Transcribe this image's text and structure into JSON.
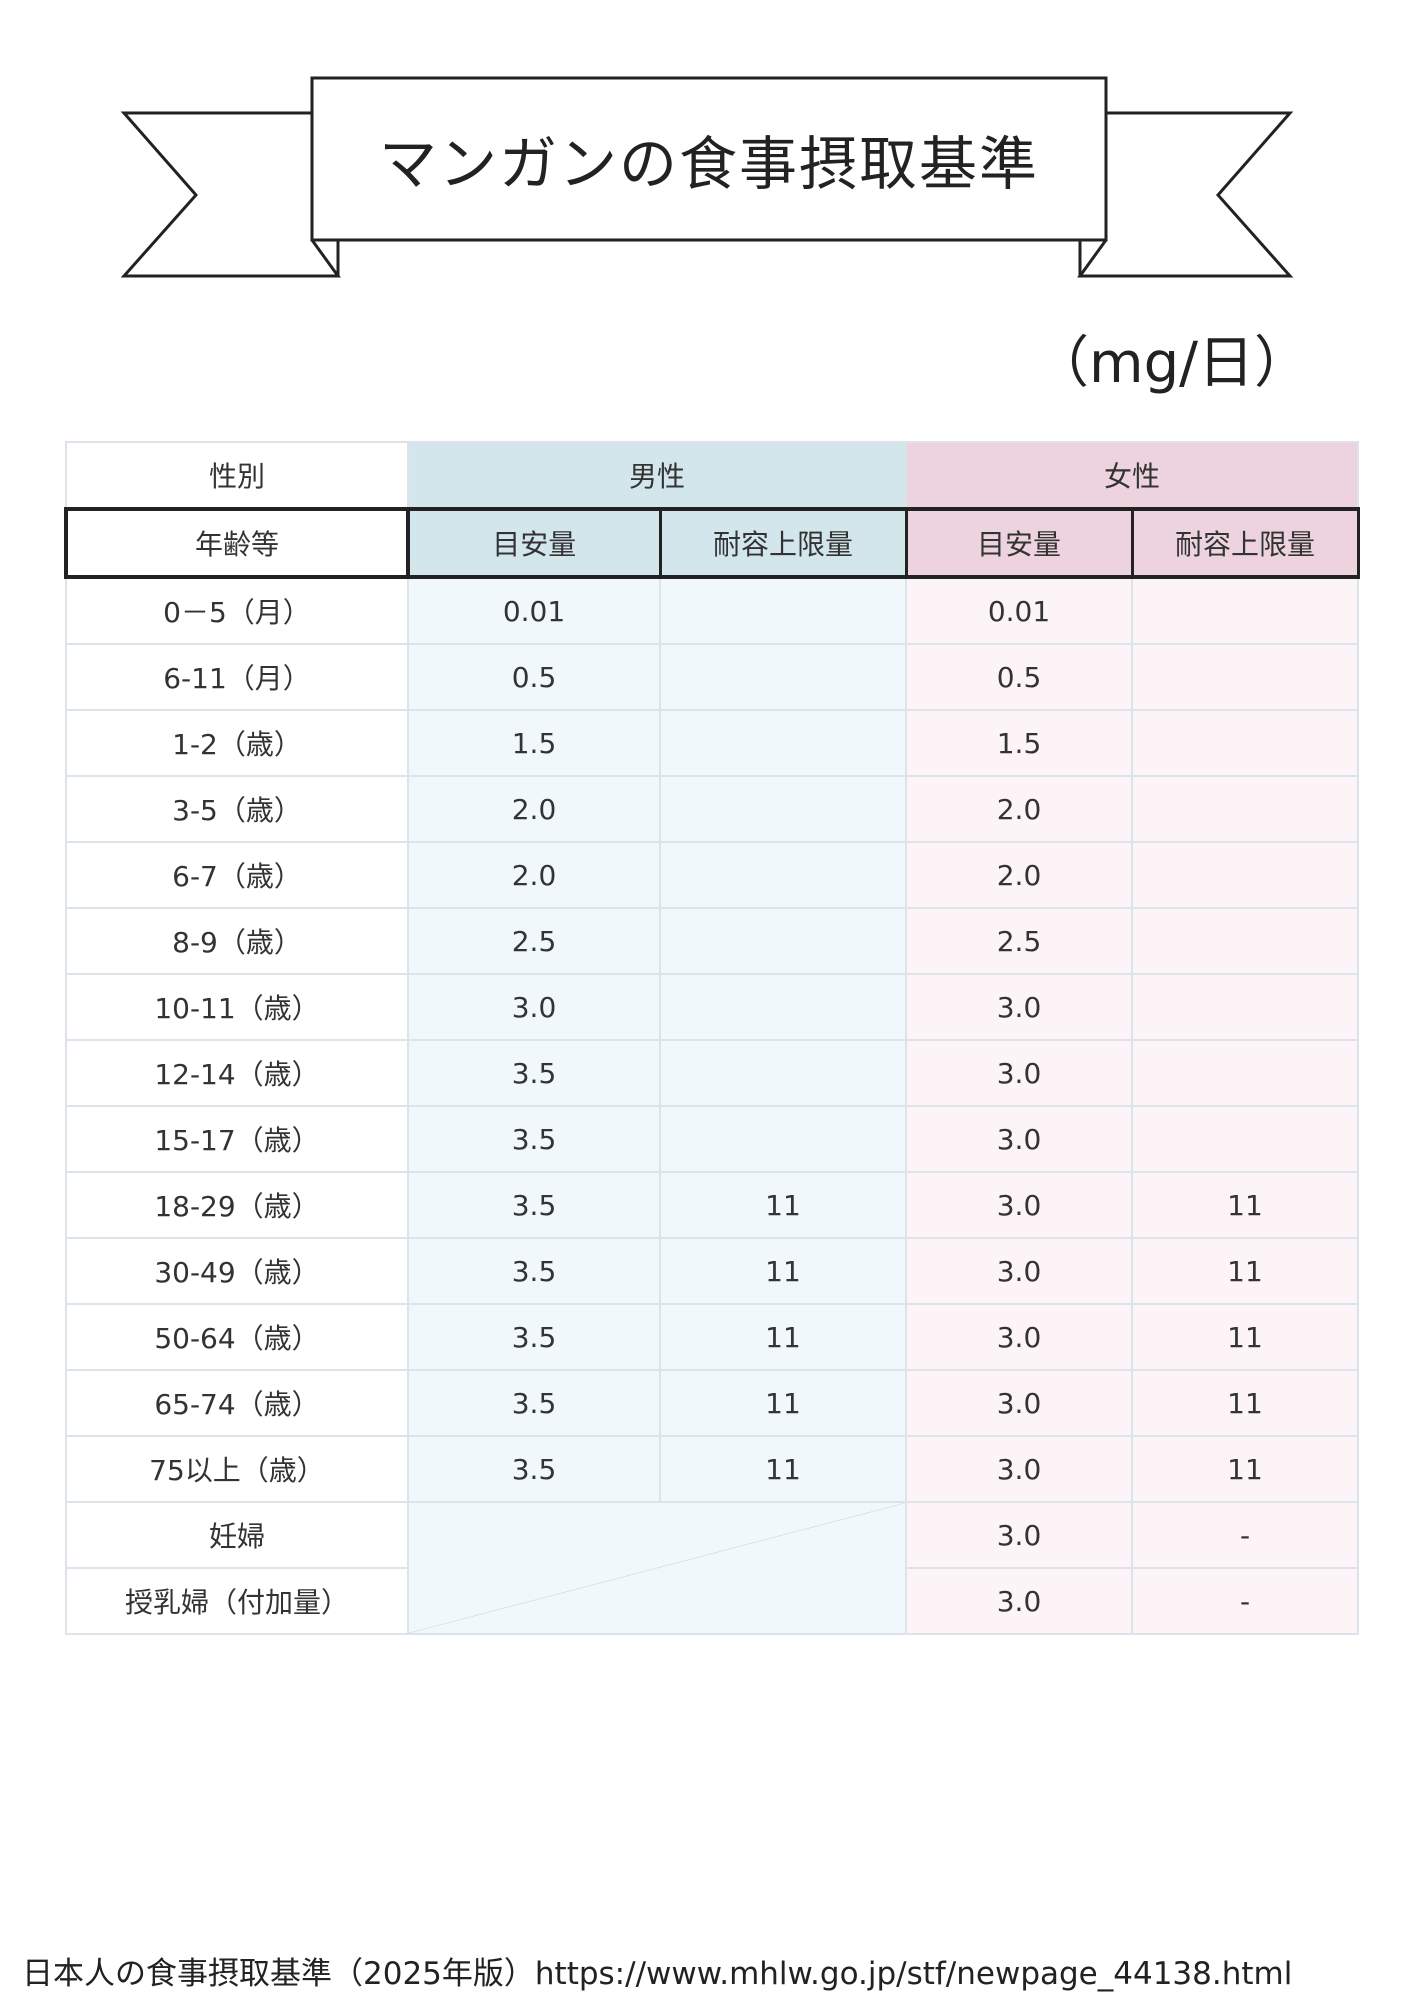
{
  "title": "マンガンの食事摂取基準",
  "unit": "（mg/日）",
  "header": {
    "sex_label": "性別",
    "male": "男性",
    "female": "女性",
    "age_label": "年齢等",
    "male_ai": "目安量",
    "male_ul": "耐容上限量",
    "female_ai": "目安量",
    "female_ul": "耐容上限量"
  },
  "rows": [
    {
      "age": "0－5（月）",
      "m_ai": "0.01",
      "m_ul": "",
      "f_ai": "0.01",
      "f_ul": ""
    },
    {
      "age": "6-11（月）",
      "m_ai": "0.5",
      "m_ul": "",
      "f_ai": "0.5",
      "f_ul": ""
    },
    {
      "age": "1-2（歳）",
      "m_ai": "1.5",
      "m_ul": "",
      "f_ai": "1.5",
      "f_ul": ""
    },
    {
      "age": "3-5（歳）",
      "m_ai": "2.0",
      "m_ul": "",
      "f_ai": "2.0",
      "f_ul": ""
    },
    {
      "age": "6-7（歳）",
      "m_ai": "2.0",
      "m_ul": "",
      "f_ai": "2.0",
      "f_ul": ""
    },
    {
      "age": "8-9（歳）",
      "m_ai": "2.5",
      "m_ul": "",
      "f_ai": "2.5",
      "f_ul": ""
    },
    {
      "age": "10-11（歳）",
      "m_ai": "3.0",
      "m_ul": "",
      "f_ai": "3.0",
      "f_ul": ""
    },
    {
      "age": "12-14（歳）",
      "m_ai": "3.5",
      "m_ul": "",
      "f_ai": "3.0",
      "f_ul": ""
    },
    {
      "age": "15-17（歳）",
      "m_ai": "3.5",
      "m_ul": "",
      "f_ai": "3.0",
      "f_ul": ""
    },
    {
      "age": "18-29（歳）",
      "m_ai": "3.5",
      "m_ul": "11",
      "f_ai": "3.0",
      "f_ul": "11"
    },
    {
      "age": "30-49（歳）",
      "m_ai": "3.5",
      "m_ul": "11",
      "f_ai": "3.0",
      "f_ul": "11"
    },
    {
      "age": "50-64（歳）",
      "m_ai": "3.5",
      "m_ul": "11",
      "f_ai": "3.0",
      "f_ul": "11"
    },
    {
      "age": "65-74（歳）",
      "m_ai": "3.5",
      "m_ul": "11",
      "f_ai": "3.0",
      "f_ul": "11"
    },
    {
      "age": "75以上（歳）",
      "m_ai": "3.5",
      "m_ul": "11",
      "f_ai": "3.0",
      "f_ul": "11"
    }
  ],
  "special_rows": [
    {
      "age": "妊婦",
      "f_ai": "3.0",
      "f_ul": "-"
    },
    {
      "age": "授乳婦（付加量）",
      "f_ai": "3.0",
      "f_ul": "-"
    }
  ],
  "footer": "日本人の食事摂取基準（2025年版）https://www.mhlw.go.jp/stf/newpage_44138.html"
}
